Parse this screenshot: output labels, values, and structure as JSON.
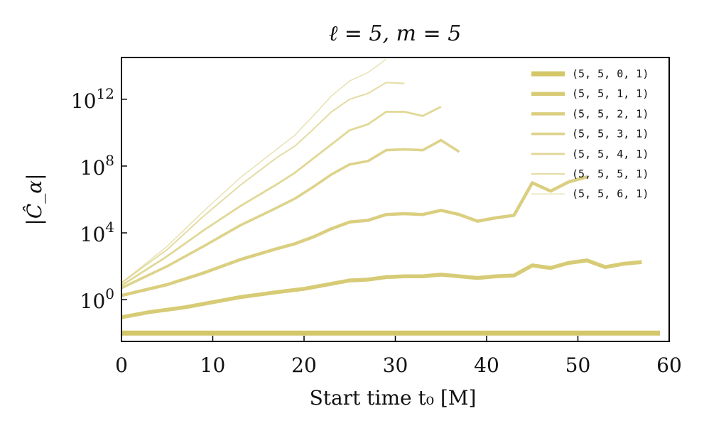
{
  "chart_data": {
    "type": "line",
    "title": "ℓ = 5, m = 5",
    "xlabel": "Start time t₀ [M]",
    "ylabel": "|Ĉ_α|",
    "xlim": [
      0,
      60
    ],
    "ylim_log10": [
      -2.5,
      14.5
    ],
    "yscale": "log",
    "color": "#d4c76a",
    "legend_position": "top-right",
    "x_ticks": [
      0,
      10,
      20,
      30,
      40,
      50,
      60
    ],
    "y_ticks": [
      {
        "base": "10",
        "exp": "0",
        "value_log10": 0
      },
      {
        "base": "10",
        "exp": "4",
        "value_log10": 4
      },
      {
        "base": "10",
        "exp": "8",
        "value_log10": 8
      },
      {
        "base": "10",
        "exp": "12",
        "value_log10": 12
      }
    ],
    "series": [
      {
        "name": "(5, 5, 0, 1)",
        "x": [
          0,
          10,
          20,
          30,
          40,
          50,
          59
        ],
        "log10_y": [
          -2,
          -2,
          -2,
          -2,
          -2,
          -2,
          -2
        ]
      },
      {
        "name": "(5, 5, 1, 1)",
        "x": [
          0,
          3,
          7,
          10,
          13,
          17,
          20,
          23,
          25,
          27,
          29,
          31,
          33,
          35,
          37,
          39,
          41,
          43,
          45,
          47,
          49,
          51,
          53,
          55,
          57
        ],
        "log10_y": [
          -1.05,
          -0.75,
          -0.45,
          -0.15,
          0.15,
          0.45,
          0.65,
          0.95,
          1.15,
          1.2,
          1.35,
          1.4,
          1.4,
          1.5,
          1.4,
          1.3,
          1.4,
          1.45,
          2.05,
          1.9,
          2.2,
          2.35,
          1.95,
          2.15,
          2.25
        ]
      },
      {
        "name": "(5, 5, 2, 1)",
        "x": [
          0,
          5,
          9,
          13,
          17,
          19,
          21,
          23,
          25,
          27,
          29,
          31,
          33,
          35,
          37,
          39,
          41,
          43,
          45,
          47,
          49,
          51
        ],
        "log10_y": [
          0.25,
          0.9,
          1.6,
          2.4,
          3.05,
          3.35,
          3.75,
          4.25,
          4.65,
          4.75,
          5.1,
          5.15,
          5.1,
          5.35,
          5.1,
          4.7,
          4.9,
          5.05,
          7.0,
          6.5,
          7.05,
          7.35
        ]
      },
      {
        "name": "(5, 5, 3, 1)",
        "x": [
          0,
          5,
          9,
          13,
          17,
          19,
          21,
          23,
          25,
          27,
          29,
          31,
          33,
          35,
          37
        ],
        "log10_y": [
          0.7,
          2.0,
          3.2,
          4.45,
          5.5,
          6.05,
          6.75,
          7.5,
          8.1,
          8.3,
          8.95,
          9.0,
          8.95,
          9.55,
          8.85
        ]
      },
      {
        "name": "(5, 5, 4, 1)",
        "x": [
          0,
          5,
          9,
          13,
          17,
          19,
          21,
          23,
          25,
          27,
          29,
          31,
          33,
          35
        ],
        "log10_y": [
          0.85,
          2.6,
          4.15,
          5.6,
          6.9,
          7.6,
          8.45,
          9.3,
          10.15,
          10.5,
          11.25,
          11.25,
          11.0,
          11.55
        ]
      },
      {
        "name": "(5, 5, 5, 1)",
        "x": [
          0,
          5,
          9,
          13,
          17,
          19,
          21,
          23,
          25,
          27,
          29,
          31
        ],
        "log10_y": [
          1.0,
          3.0,
          5.0,
          6.85,
          8.5,
          9.2,
          10.2,
          11.25,
          12.0,
          12.35,
          13.0,
          12.95
        ]
      },
      {
        "name": "(5, 5, 6, 1)",
        "x": [
          0,
          5,
          9,
          13,
          17,
          19,
          21,
          23,
          25,
          27,
          29
        ],
        "log10_y": [
          1.0,
          3.2,
          5.3,
          7.3,
          9.0,
          9.85,
          11.0,
          12.2,
          13.1,
          13.6,
          14.4
        ]
      }
    ]
  }
}
